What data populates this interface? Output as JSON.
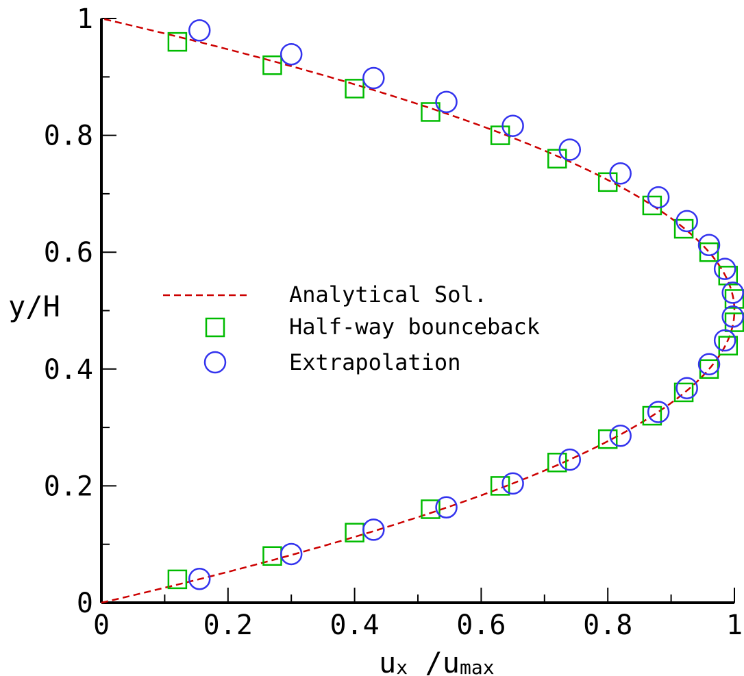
{
  "chart_data": {
    "type": "line",
    "title": "",
    "xlabel": "u",
    "xlabel_sub1": "x",
    "xlabel_sep": " /u",
    "xlabel_sub2": "max",
    "ylabel": "y/H",
    "xlim": [
      0,
      1
    ],
    "ylim": [
      0,
      1
    ],
    "x_ticks": [
      0,
      0.2,
      0.4,
      0.6,
      0.8,
      1
    ],
    "x_tick_labels": [
      "0",
      "0.2",
      "0.4",
      "0.6",
      "0.8",
      "1"
    ],
    "y_ticks": [
      0,
      0.2,
      0.4,
      0.6,
      0.8,
      1
    ],
    "y_tick_labels": [
      "0",
      "0.2",
      "0.4",
      "0.6",
      "0.8",
      "1"
    ],
    "grid": false,
    "legend_position": "center-left",
    "series": [
      {
        "name": "Analytical Sol.",
        "style": "dashed-line",
        "color": "#cc0000",
        "formula": "u/umax = 4*(y/H)*(1-y/H)"
      },
      {
        "name": "Half-way bounceback",
        "style": "square-marker",
        "color": "#00bb00",
        "x": [
          0.12,
          0.27,
          0.4,
          0.52,
          0.63,
          0.72,
          0.8,
          0.87,
          0.92,
          0.96,
          0.99,
          1.0,
          1.0,
          0.99,
          0.96,
          0.92,
          0.87,
          0.8,
          0.72,
          0.63,
          0.52,
          0.4,
          0.27,
          0.12
        ],
        "y": [
          0.04,
          0.08,
          0.12,
          0.16,
          0.2,
          0.24,
          0.28,
          0.32,
          0.36,
          0.4,
          0.44,
          0.48,
          0.52,
          0.56,
          0.6,
          0.64,
          0.68,
          0.72,
          0.76,
          0.8,
          0.84,
          0.88,
          0.92,
          0.96
        ]
      },
      {
        "name": "Extrapolation",
        "style": "circle-marker",
        "color": "#3333ee",
        "x": [
          0.155,
          0.3,
          0.43,
          0.545,
          0.65,
          0.74,
          0.82,
          0.88,
          0.925,
          0.96,
          0.985,
          0.9975,
          0.9975,
          0.985,
          0.96,
          0.925,
          0.88,
          0.82,
          0.74,
          0.65,
          0.545,
          0.43,
          0.3,
          0.155
        ],
        "y": [
          0.0408,
          0.0833,
          0.125,
          0.1633,
          0.2041,
          0.2449,
          0.2857,
          0.3265,
          0.3673,
          0.4082,
          0.449,
          0.4898,
          0.5306,
          0.5714,
          0.6122,
          0.6531,
          0.6939,
          0.7347,
          0.7755,
          0.8163,
          0.8571,
          0.898,
          0.9388,
          0.9796
        ]
      }
    ]
  },
  "colors": {
    "axis": "#000000",
    "analytical": "#cc0000",
    "bounceback": "#00bb00",
    "extrapolation": "#3333ee"
  }
}
